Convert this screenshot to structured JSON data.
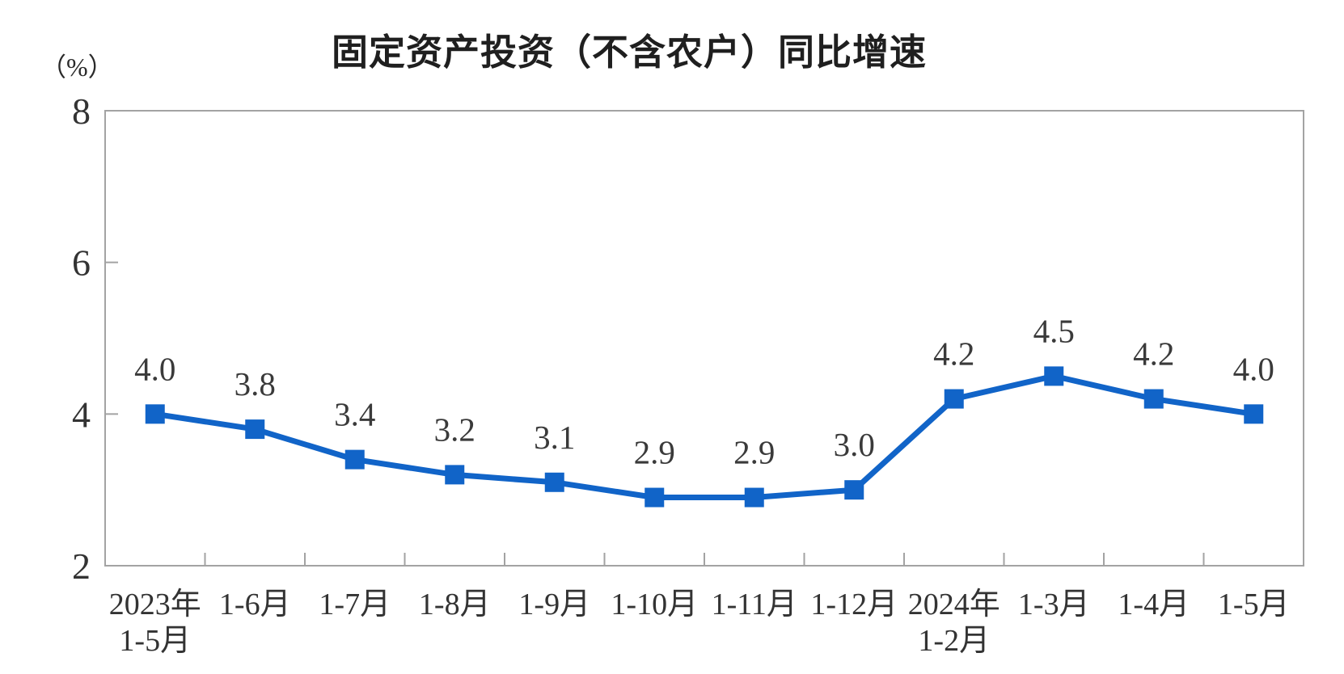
{
  "chart_data": {
    "type": "line",
    "title": "固定资产投资（不含农户）同比增速",
    "unit_label": "（%）",
    "xlabel": "",
    "ylabel": "（%）",
    "ylim": [
      2,
      8
    ],
    "yticks": [
      2,
      4,
      6,
      8
    ],
    "grid": false,
    "legend": "none",
    "categories": [
      {
        "line1": "2023年",
        "line2": "1-5月"
      },
      {
        "line1": "1-6月",
        "line2": ""
      },
      {
        "line1": "1-7月",
        "line2": ""
      },
      {
        "line1": "1-8月",
        "line2": ""
      },
      {
        "line1": "1-9月",
        "line2": ""
      },
      {
        "line1": "1-10月",
        "line2": ""
      },
      {
        "line1": "1-11月",
        "line2": ""
      },
      {
        "line1": "1-12月",
        "line2": ""
      },
      {
        "line1": "2024年",
        "line2": "1-2月"
      },
      {
        "line1": "1-3月",
        "line2": ""
      },
      {
        "line1": "1-4月",
        "line2": ""
      },
      {
        "line1": "1-5月",
        "line2": ""
      }
    ],
    "series": [
      {
        "values": [
          4.0,
          3.8,
          3.4,
          3.2,
          3.1,
          2.9,
          2.9,
          3.0,
          4.2,
          4.5,
          4.2,
          4.0
        ]
      }
    ],
    "data_labels": [
      "4.0",
      "3.8",
      "3.4",
      "3.2",
      "3.1",
      "2.9",
      "2.9",
      "3.0",
      "4.2",
      "4.5",
      "4.2",
      "4.0"
    ],
    "colors": {
      "line": "#1164C8",
      "marker": "#1164C8",
      "axis": "#a3a3a3",
      "tick_text": "#333333",
      "label_text": "#3a3a3a",
      "title_text": "#1f1f1f",
      "background": "#ffffff"
    }
  }
}
